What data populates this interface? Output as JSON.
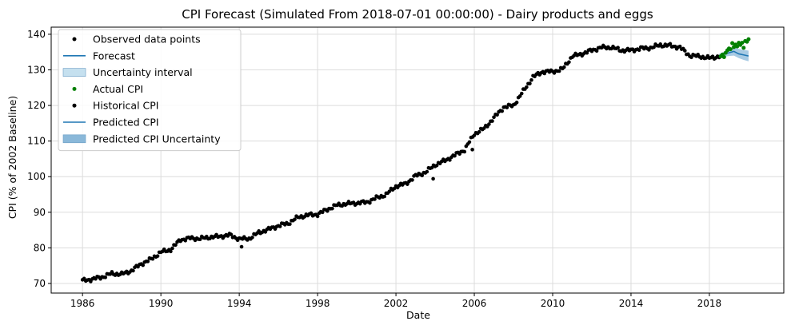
{
  "chart_data": {
    "type": "line",
    "title": "CPI Forecast (Simulated From 2018-07-01 00:00:00) - Dairy products and eggs",
    "xlabel": "Date",
    "ylabel": "CPI (% of 2002 Baseline)",
    "xlim": [
      1984.4,
      2021.8
    ],
    "ylim": [
      67.3,
      142.0
    ],
    "x_ticks": [
      1986,
      1990,
      1994,
      1998,
      2002,
      2006,
      2010,
      2014,
      2018
    ],
    "x_tick_labels": [
      "1986",
      "1990",
      "1994",
      "1998",
      "2002",
      "2006",
      "2010",
      "2014",
      "2018"
    ],
    "y_ticks": [
      70,
      80,
      90,
      100,
      110,
      120,
      130,
      140
    ],
    "y_tick_labels": [
      "70",
      "80",
      "90",
      "100",
      "110",
      "120",
      "130",
      "140"
    ],
    "grid": true,
    "legend_position": "top-left",
    "legend": [
      {
        "label": "Observed data points",
        "kind": "dot",
        "color": "#000000"
      },
      {
        "label": "Forecast",
        "kind": "line",
        "color": "#1f77b4"
      },
      {
        "label": "Uncertainty interval",
        "kind": "patch",
        "color": "#c5e0ef"
      },
      {
        "label": "Actual CPI",
        "kind": "dot",
        "color": "#008000"
      },
      {
        "label": "Historical CPI",
        "kind": "dot",
        "color": "#000000"
      },
      {
        "label": "Predicted CPI",
        "kind": "line",
        "color": "#1f77b4"
      },
      {
        "label": "Predicted CPI Uncertainty",
        "kind": "patch",
        "color": "#8ab8d9"
      }
    ],
    "historical_anchors": [
      [
        1986.0,
        70.8
      ],
      [
        1986.5,
        71.2
      ],
      [
        1987.0,
        71.8
      ],
      [
        1987.5,
        72.8
      ],
      [
        1988.0,
        72.6
      ],
      [
        1988.5,
        73.6
      ],
      [
        1989.0,
        75.5
      ],
      [
        1989.5,
        76.8
      ],
      [
        1990.0,
        78.8
      ],
      [
        1990.5,
        79.5
      ],
      [
        1991.0,
        82.3
      ],
      [
        1991.5,
        82.7
      ],
      [
        1992.0,
        82.6
      ],
      [
        1992.5,
        83.0
      ],
      [
        1993.0,
        83.2
      ],
      [
        1993.5,
        83.6
      ],
      [
        1994.0,
        82.5
      ],
      [
        1994.5,
        82.6
      ],
      [
        1995.0,
        84.3
      ],
      [
        1995.5,
        85.2
      ],
      [
        1996.0,
        86.2
      ],
      [
        1996.5,
        86.9
      ],
      [
        1997.0,
        88.6
      ],
      [
        1997.5,
        89.2
      ],
      [
        1998.0,
        89.4
      ],
      [
        1998.5,
        90.8
      ],
      [
        1999.0,
        92.0
      ],
      [
        1999.5,
        92.4
      ],
      [
        2000.0,
        92.6
      ],
      [
        2000.5,
        92.8
      ],
      [
        2001.0,
        94.0
      ],
      [
        2001.5,
        95.0
      ],
      [
        2002.0,
        97.3
      ],
      [
        2002.5,
        98.0
      ],
      [
        2003.0,
        100.2
      ],
      [
        2003.5,
        101.2
      ],
      [
        2004.0,
        103.3
      ],
      [
        2004.5,
        104.5
      ],
      [
        2005.0,
        106.0
      ],
      [
        2005.5,
        107.5
      ],
      [
        2006.0,
        112.0
      ],
      [
        2006.5,
        113.5
      ],
      [
        2007.0,
        116.5
      ],
      [
        2007.5,
        119.5
      ],
      [
        2008.0,
        120.0
      ],
      [
        2008.5,
        124.0
      ],
      [
        2009.0,
        128.0
      ],
      [
        2009.5,
        129.5
      ],
      [
        2010.0,
        129.5
      ],
      [
        2010.5,
        130.2
      ],
      [
        2011.0,
        133.8
      ],
      [
        2011.5,
        134.5
      ],
      [
        2012.0,
        135.5
      ],
      [
        2012.5,
        136.3
      ],
      [
        2013.0,
        136.3
      ],
      [
        2013.5,
        135.5
      ],
      [
        2014.0,
        135.5
      ],
      [
        2014.5,
        136.0
      ],
      [
        2015.0,
        136.2
      ],
      [
        2015.5,
        137.0
      ],
      [
        2016.0,
        136.8
      ],
      [
        2016.5,
        136.3
      ],
      [
        2017.0,
        134.0
      ],
      [
        2017.5,
        133.8
      ],
      [
        2018.0,
        133.3
      ],
      [
        2018.5,
        133.8
      ]
    ],
    "historical_outliers": [
      [
        1994.12,
        80.3
      ],
      [
        2003.9,
        99.4
      ],
      [
        2005.9,
        107.6
      ]
    ],
    "actual_cpi": [
      [
        2018.58,
        133.8
      ],
      [
        2018.67,
        134.3
      ],
      [
        2018.75,
        133.6
      ],
      [
        2018.83,
        134.8
      ],
      [
        2018.92,
        135.5
      ],
      [
        2019.0,
        136.0
      ],
      [
        2019.08,
        135.8
      ],
      [
        2019.17,
        137.5
      ],
      [
        2019.25,
        136.4
      ],
      [
        2019.33,
        137.1
      ],
      [
        2019.42,
        136.6
      ],
      [
        2019.5,
        137.6
      ],
      [
        2019.58,
        137.0
      ],
      [
        2019.67,
        137.6
      ],
      [
        2019.75,
        136.2
      ],
      [
        2019.83,
        138.1
      ],
      [
        2019.92,
        137.9
      ],
      [
        2020.0,
        138.6
      ]
    ],
    "forecast": [
      [
        2018.5,
        133.9
      ],
      [
        2018.75,
        134.4
      ],
      [
        2019.0,
        134.8
      ],
      [
        2019.25,
        135.2
      ],
      [
        2019.5,
        134.5
      ],
      [
        2019.75,
        134.2
      ],
      [
        2020.0,
        133.9
      ]
    ],
    "forecast_lower": [
      [
        2018.5,
        133.3
      ],
      [
        2018.75,
        133.7
      ],
      [
        2019.0,
        133.9
      ],
      [
        2019.25,
        134.0
      ],
      [
        2019.5,
        133.3
      ],
      [
        2019.75,
        132.8
      ],
      [
        2020.0,
        132.4
      ]
    ],
    "forecast_upper": [
      [
        2018.5,
        134.5
      ],
      [
        2018.75,
        135.1
      ],
      [
        2019.0,
        135.7
      ],
      [
        2019.25,
        136.4
      ],
      [
        2019.5,
        135.9
      ],
      [
        2019.75,
        135.6
      ],
      [
        2020.0,
        135.4
      ]
    ]
  }
}
